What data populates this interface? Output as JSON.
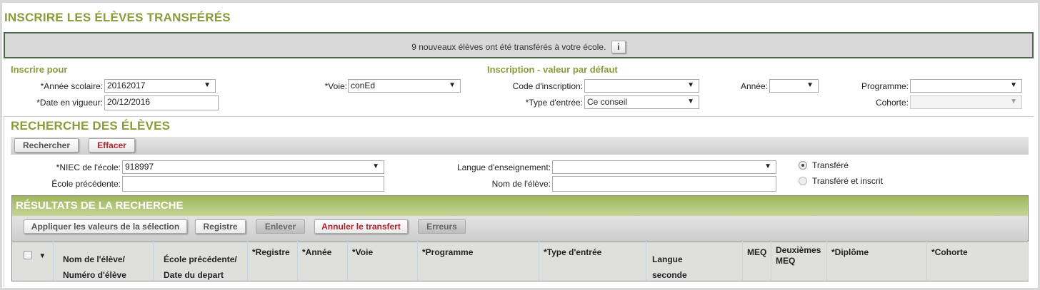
{
  "title": "INSCRIRE LES ÉLÈVES TRANSFÉRÉS",
  "notice": {
    "text": "9 nouveaux élèves ont été transférés à votre école.",
    "info_button": "i"
  },
  "inscrire_pour": {
    "heading": "Inscrire pour",
    "annee_scolaire": {
      "label": "*Année scolaire:",
      "value": "20162017"
    },
    "date_vigueur": {
      "label": "*Date en vigueur:",
      "value": "20/12/2016"
    },
    "voie": {
      "label": "*Voie:",
      "value": "conEd"
    }
  },
  "inscription_defaut": {
    "heading": "Inscription - valeur par défaut",
    "code": {
      "label": "Code d'inscription:",
      "value": ""
    },
    "type_entree": {
      "label": "*Type d'entrée:",
      "value": "Ce conseil"
    },
    "annee": {
      "label": "Année:",
      "value": ""
    },
    "programme": {
      "label": "Programme:",
      "value": ""
    },
    "cohorte": {
      "label": "Cohorte:",
      "value": ""
    }
  },
  "recherche": {
    "heading": "RECHERCHE DES ÉLÈVES",
    "search_button": "Rechercher",
    "clear_button": "Effacer",
    "niec": {
      "label": "*NIEC de l'école:",
      "value": "918997"
    },
    "ecole_prec": {
      "label": "École précédente:",
      "value": ""
    },
    "langue": {
      "label": "Langue d'enseignement:",
      "value": ""
    },
    "nom": {
      "label": "Nom de l'élève:",
      "value": ""
    },
    "radio_transfere": "Transféré",
    "radio_transfere_inscrit": "Transféré et inscrit"
  },
  "resultats": {
    "heading": "RÉSULTATS DE LA RECHERCHE",
    "buttons": {
      "appliquer": "Appliquer les valeurs de la sélection",
      "registre": "Registre",
      "enlever": "Enlever",
      "annuler": "Annuler le transfert",
      "erreurs": "Erreurs"
    },
    "columns": [
      "Nom de l'élève/\nNuméro d'élève",
      "École précédente/\nDate du depart",
      "*Registre",
      "*Année",
      "*Voie",
      "*Programme",
      "*Type d'entrée",
      "Langue\nseconde",
      "MEQ",
      "Deuxièmes\nMEQ",
      "*Diplôme",
      "*Cohorte"
    ]
  },
  "colors": {
    "accent": "#8a9b3b",
    "danger": "#b3202a"
  }
}
